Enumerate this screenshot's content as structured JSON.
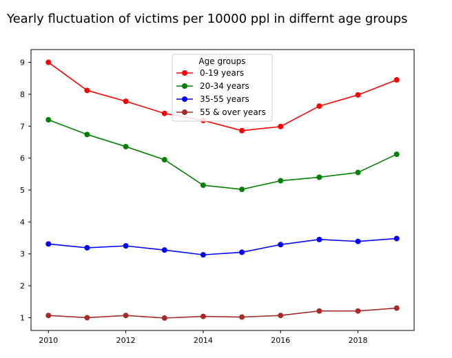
{
  "chart_data": {
    "type": "line",
    "title": "Yearly fluctuation of victims per 10000 ppl in differnt age groups",
    "xlabel": "",
    "ylabel": "",
    "x": [
      2010,
      2011,
      2012,
      2013,
      2014,
      2015,
      2016,
      2017,
      2018,
      2019
    ],
    "xlim": [
      2009.55,
      2019.45
    ],
    "ylim": [
      0.6,
      9.4
    ],
    "xticks": [
      2010,
      2012,
      2014,
      2016,
      2018
    ],
    "yticks": [
      1,
      2,
      3,
      4,
      5,
      6,
      7,
      8,
      9
    ],
    "grid": false,
    "legend": {
      "title": "Age groups",
      "position": "top-center"
    },
    "series": [
      {
        "name": "0-19 years",
        "color": "#ff0000",
        "values": [
          9.0,
          8.12,
          7.78,
          7.4,
          7.18,
          6.86,
          6.99,
          7.63,
          7.98,
          8.45
        ]
      },
      {
        "name": "20-34 years",
        "color": "#008000",
        "values": [
          7.2,
          6.74,
          6.36,
          5.95,
          5.15,
          5.02,
          5.29,
          5.4,
          5.55,
          6.12
        ]
      },
      {
        "name": "35-55 years",
        "color": "#0000ff",
        "values": [
          3.31,
          3.19,
          3.25,
          3.12,
          2.97,
          3.05,
          3.29,
          3.45,
          3.39,
          3.48
        ]
      },
      {
        "name": "55 & over years",
        "color": "#a52a2a",
        "values": [
          1.07,
          1.0,
          1.07,
          0.99,
          1.04,
          1.02,
          1.07,
          1.21,
          1.21,
          1.3
        ]
      }
    ]
  }
}
